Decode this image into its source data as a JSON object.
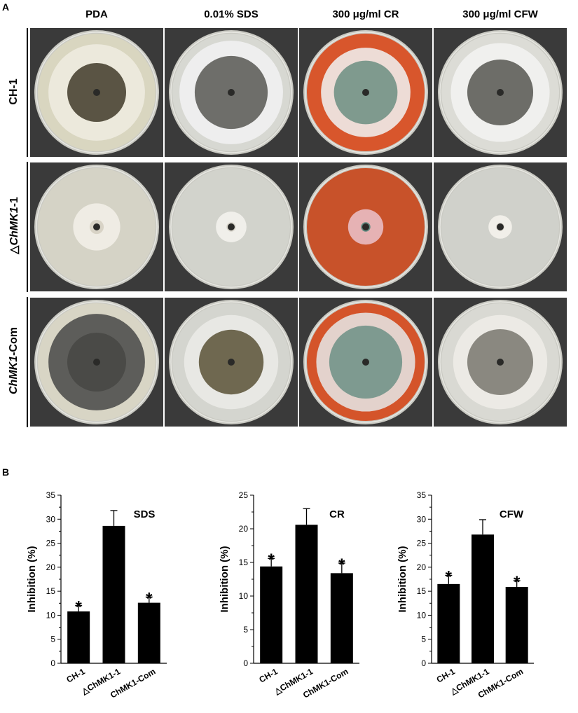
{
  "panel_a": {
    "letter": "A",
    "columns": [
      "PDA",
      "0.01% SDS",
      "300 μg/ml CR",
      "300 μg/ml CFW"
    ],
    "rows": [
      {
        "prefix": "",
        "italic": "",
        "suffix": "CH-1"
      },
      {
        "prefix": "△",
        "italic": "ChMK1",
        "suffix": "-1"
      },
      {
        "prefix": "",
        "italic": "ChMK1",
        "suffix": "-Com"
      }
    ],
    "plates": [
      [
        {
          "medium": "#d9d6c0",
          "colony_outer": "#ece9dc",
          "colony_inner": "#5a5444",
          "outer_frac": 0.82,
          "inner_frac": 0.5
        },
        {
          "medium": "#d7d8d2",
          "colony_outer": "#eeeeee",
          "colony_inner": "#6e6e6a",
          "outer_frac": 0.88,
          "inner_frac": 0.62
        },
        {
          "medium": "#d8562c",
          "colony_outer": "#eddcd6",
          "colony_inner": "#7f9a8e",
          "outer_frac": 0.76,
          "inner_frac": 0.54
        },
        {
          "medium": "#dcdcd6",
          "colony_outer": "#f0f0ee",
          "colony_inner": "#6d6d68",
          "outer_frac": 0.84,
          "inner_frac": 0.56
        }
      ],
      [
        {
          "medium": "#d5d3c6",
          "colony_outer": "#efece4",
          "colony_inner": "#d8d3c6",
          "outer_frac": 0.4,
          "inner_frac": 0.12
        },
        {
          "medium": "#d2d3cc",
          "colony_outer": "#f0efea",
          "colony_inner": "#d9d6cc",
          "outer_frac": 0.26,
          "inner_frac": 0.08
        },
        {
          "medium": "#c8522a",
          "colony_outer": "#e6b2b4",
          "colony_inner": "#5f8a80",
          "outer_frac": 0.3,
          "inner_frac": 0.08
        },
        {
          "medium": "#d0d1cb",
          "colony_outer": "#f1efe9",
          "colony_inner": "#d9d5cc",
          "outer_frac": 0.2,
          "inner_frac": 0.07
        }
      ],
      [
        {
          "medium": "#d8d5c5",
          "colony_outer": "#5d5d5a",
          "colony_inner": "#4a4a47",
          "outer_frac": 0.82,
          "inner_frac": 0.5
        },
        {
          "medium": "#d4d5cf",
          "colony_outer": "#e8e8e4",
          "colony_inner": "#6f6850",
          "outer_frac": 0.8,
          "inner_frac": 0.55
        },
        {
          "medium": "#d4542a",
          "colony_outer": "#e3d2cc",
          "colony_inner": "#7e9a90",
          "outer_frac": 0.84,
          "inner_frac": 0.62
        },
        {
          "medium": "#d9d9d3",
          "colony_outer": "#eceae5",
          "colony_inner": "#8a8880",
          "outer_frac": 0.8,
          "inner_frac": 0.56
        }
      ]
    ]
  },
  "panel_b": {
    "letter": "B"
  },
  "chart_data": [
    {
      "type": "bar",
      "title": "SDS",
      "ylabel": "Inhibition (%)",
      "categories": [
        "CH-1",
        "△ChMK1-1",
        "ChMK1-Com"
      ],
      "values": [
        10.8,
        28.6,
        12.6
      ],
      "errors": [
        1.2,
        3.2,
        1.2
      ],
      "significance": [
        "*",
        "",
        "*"
      ],
      "ylim": [
        0,
        35
      ],
      "yticks": [
        0,
        5,
        10,
        15,
        20,
        25,
        30,
        35
      ],
      "ytick_labels": [
        "0",
        "5",
        "10",
        "15",
        "20",
        "25",
        "30",
        "35"
      ]
    },
    {
      "type": "bar",
      "title": "CR",
      "ylabel": "Inhibition (%)",
      "categories": [
        "CH-1",
        "△ChMK1-1",
        "ChMK1-Com"
      ],
      "values": [
        14.4,
        20.6,
        13.4
      ],
      "errors": [
        1.2,
        2.4,
        1.5
      ],
      "significance": [
        "*",
        "",
        "*"
      ],
      "ylim": [
        0,
        25
      ],
      "yticks": [
        0,
        5,
        10,
        15,
        20,
        25
      ],
      "ytick_labels": [
        "0",
        "5",
        "10",
        "15",
        "20",
        "25"
      ]
    },
    {
      "type": "bar",
      "title": "CFW",
      "ylabel": "Inhibition (%)",
      "categories": [
        "CH-1",
        "△ChMK1-1",
        "ChMK1-Com"
      ],
      "values": [
        16.5,
        26.8,
        15.9
      ],
      "errors": [
        1.8,
        3.1,
        1.3
      ],
      "significance": [
        "*",
        "",
        "*"
      ],
      "ylim": [
        0,
        35
      ],
      "yticks": [
        0,
        5,
        10,
        15,
        20,
        25,
        30,
        35
      ],
      "ytick_labels": [
        "0",
        "5",
        "10",
        "15",
        "20",
        "25",
        "30",
        "35"
      ]
    }
  ]
}
